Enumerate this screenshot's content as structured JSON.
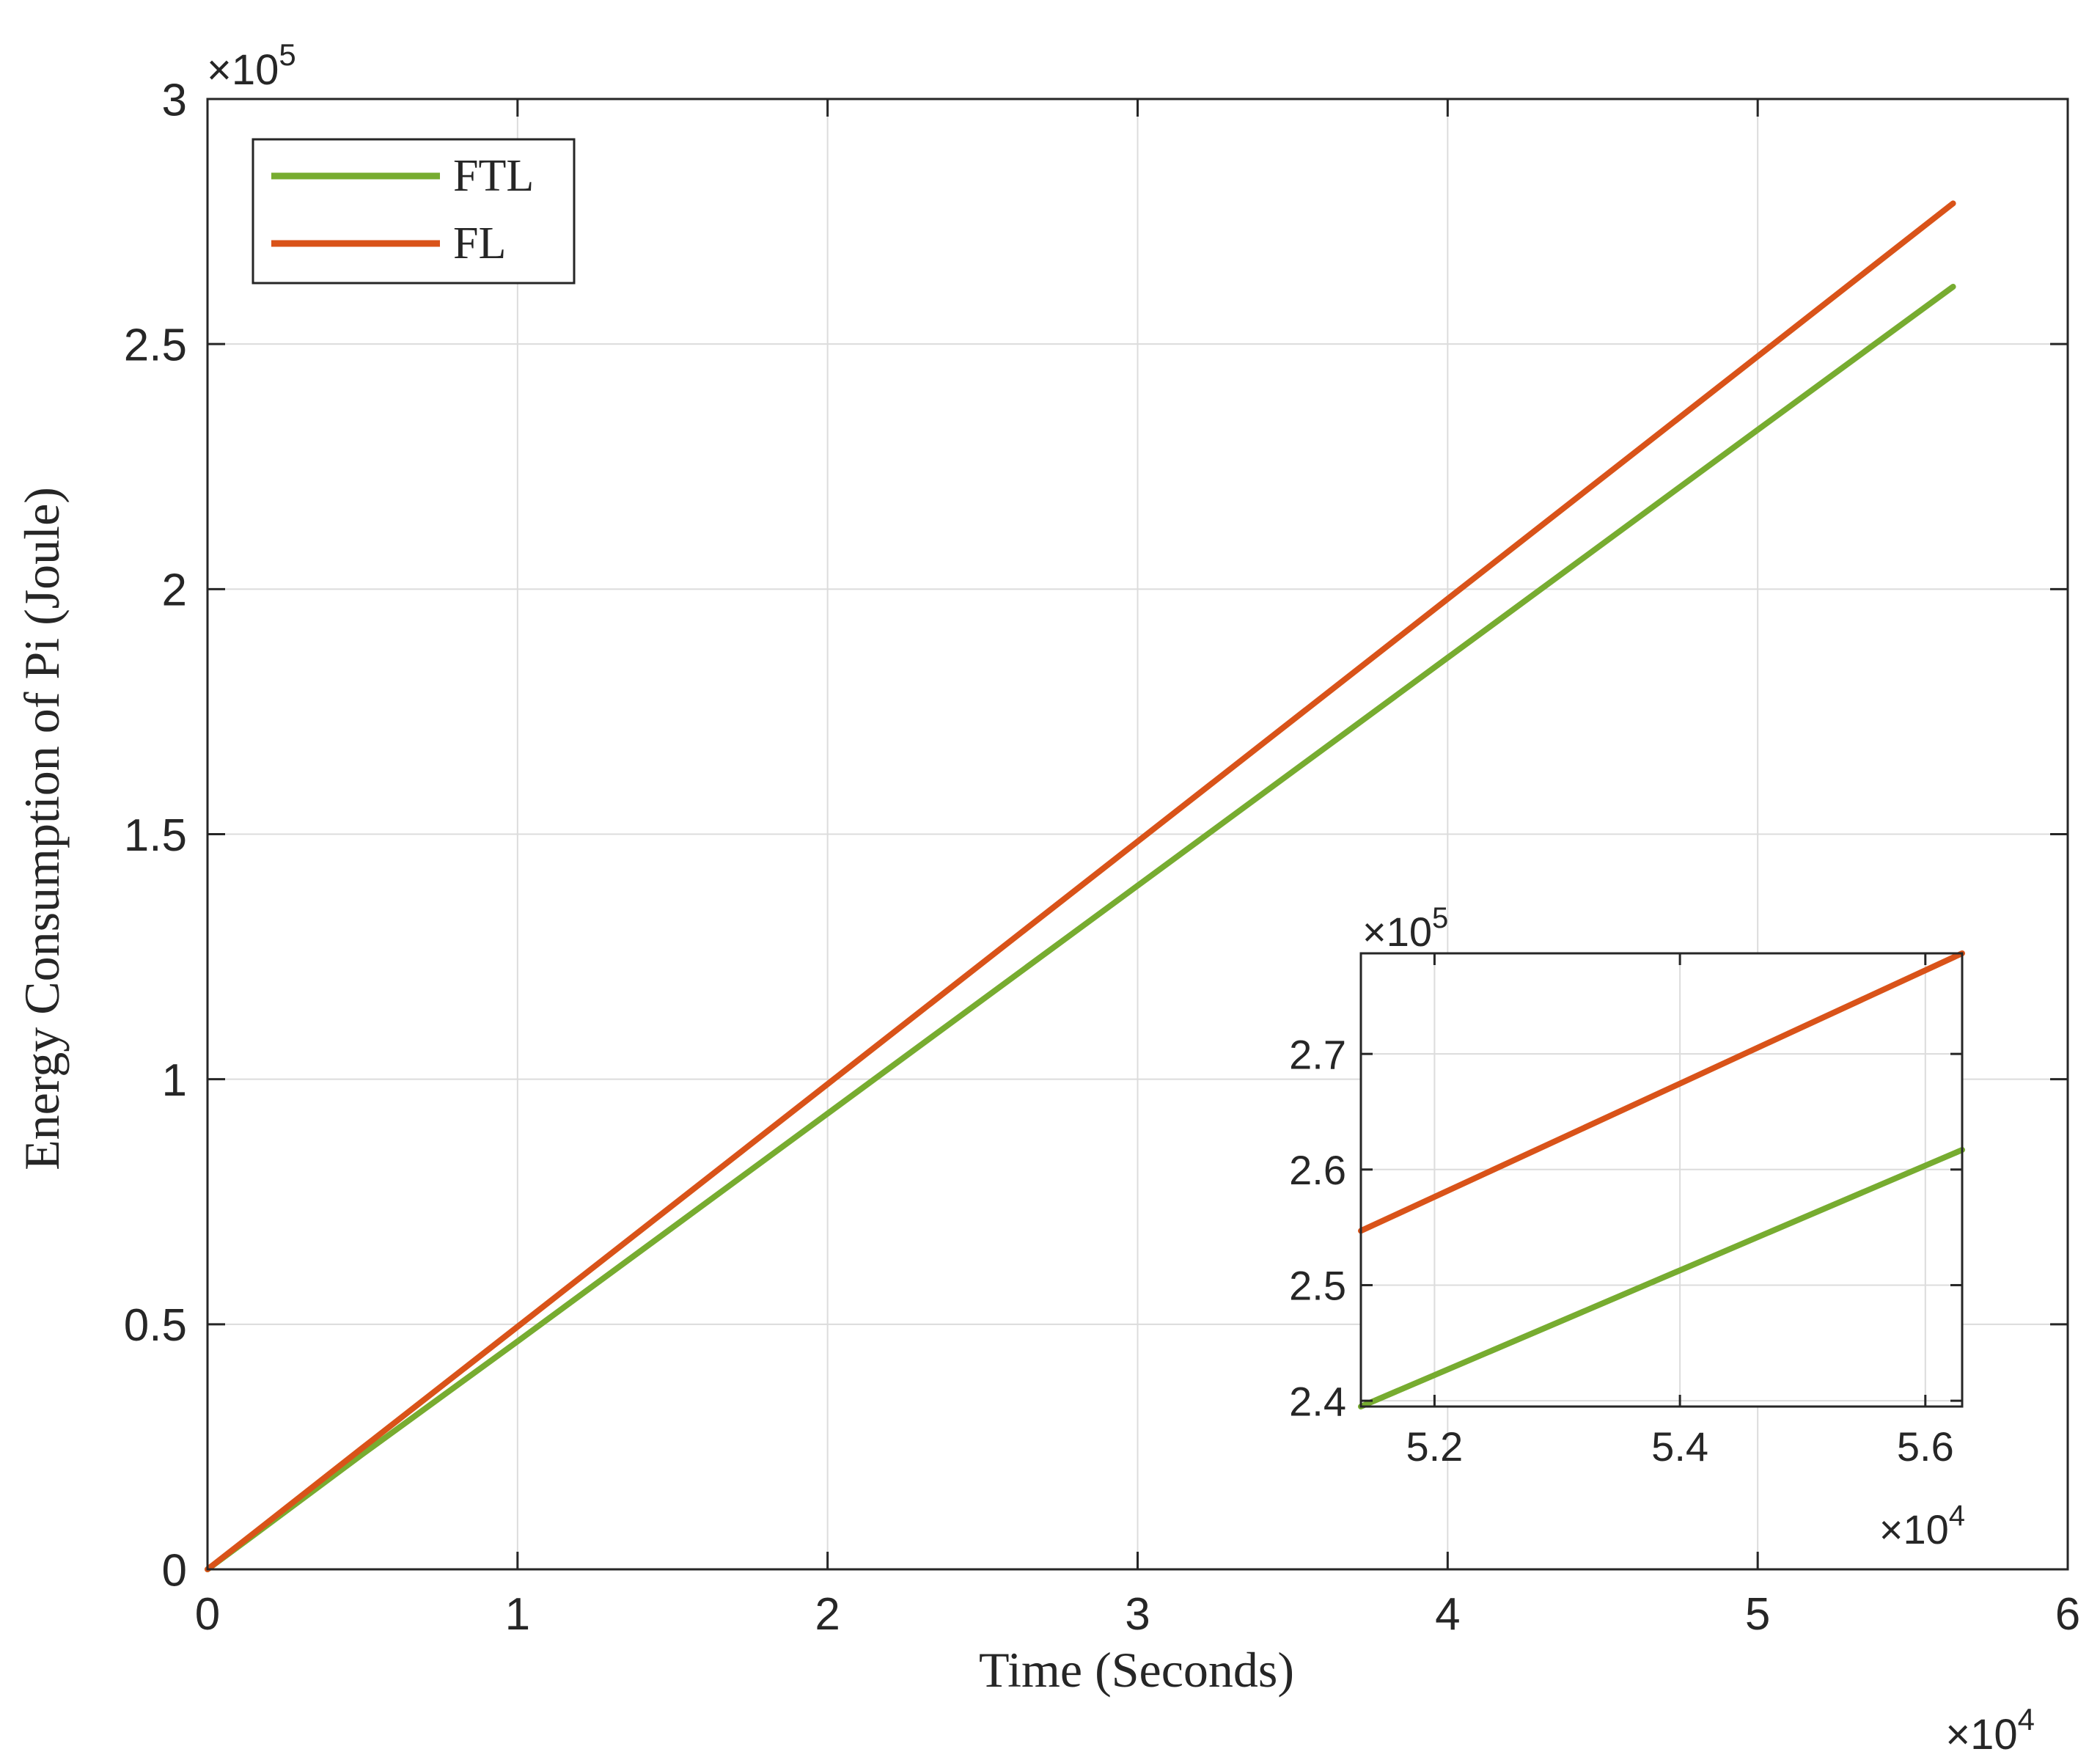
{
  "chart_data": [
    {
      "type": "line",
      "title": "",
      "xlabel": "Time (Seconds)",
      "ylabel": "Energy Consumption of Pi (Joule)",
      "x_exponent_label": "×10",
      "x_exponent_power": "4",
      "y_exponent_label": "×10",
      "y_exponent_power": "5",
      "xlim": [
        0,
        60000
      ],
      "ylim": [
        0,
        300000
      ],
      "xticks": [
        0,
        10000,
        20000,
        30000,
        40000,
        50000,
        60000
      ],
      "xtick_labels": [
        "0",
        "1",
        "2",
        "3",
        "4",
        "5",
        "6"
      ],
      "yticks": [
        0,
        50000,
        100000,
        150000,
        200000,
        250000,
        300000
      ],
      "ytick_labels": [
        "0",
        "0.5",
        "1",
        "1.5",
        "2",
        "2.5",
        "3"
      ],
      "grid": true,
      "legend_position": "top-left",
      "series": [
        {
          "name": "FTL",
          "color": "#77ac30",
          "x": [
            0,
            1500,
            5000,
            10000,
            20000,
            30000,
            40000,
            50000,
            56300
          ],
          "y": [
            0,
            7000,
            23500,
            46500,
            93000,
            139500,
            186000,
            232500,
            261700
          ]
        },
        {
          "name": "FL",
          "color": "#d95319",
          "x": [
            0,
            1500,
            5000,
            10000,
            20000,
            30000,
            40000,
            50000,
            56300
          ],
          "y": [
            0,
            7400,
            24800,
            49500,
            99000,
            148500,
            198000,
            247500,
            278700
          ]
        }
      ]
    },
    {
      "type": "line",
      "title": "",
      "xlabel": "",
      "ylabel": "",
      "x_exponent_label": "×10",
      "x_exponent_power": "4",
      "y_exponent_label": "×10",
      "y_exponent_power": "5",
      "xlim": [
        51400,
        56300
      ],
      "ylim": [
        239500,
        278700
      ],
      "xticks": [
        52000,
        54000,
        56000
      ],
      "xtick_labels": [
        "5.2",
        "5.4",
        "5.6"
      ],
      "yticks": [
        240000,
        250000,
        260000,
        270000
      ],
      "ytick_labels": [
        "2.4",
        "2.5",
        "2.6",
        "2.7"
      ],
      "grid": true,
      "series": [
        {
          "name": "FTL",
          "color": "#77ac30",
          "x": [
            51400,
            56300
          ],
          "y": [
            239500,
            261700
          ]
        },
        {
          "name": "FL",
          "color": "#d95319",
          "x": [
            51400,
            56300
          ],
          "y": [
            254700,
            278700
          ]
        }
      ]
    }
  ]
}
